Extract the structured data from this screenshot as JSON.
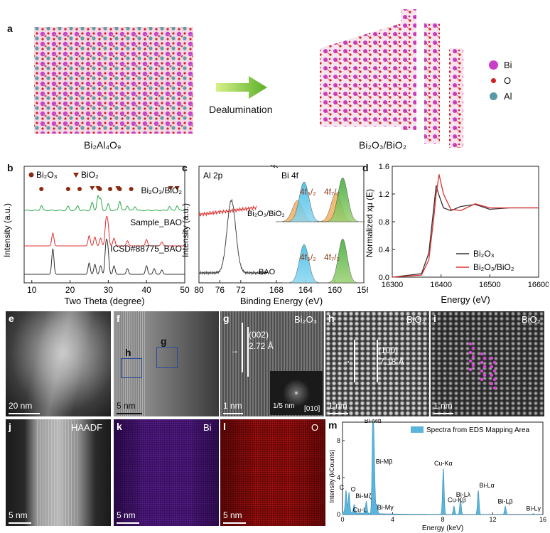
{
  "panel_letters": {
    "a": "a",
    "b": "b",
    "c": "c",
    "d": "d",
    "e": "e",
    "f": "f",
    "g": "g",
    "h": "h",
    "i": "i",
    "j": "j",
    "k": "k",
    "l": "l",
    "m": "m"
  },
  "panel_a": {
    "left_label": "Bi₂Al₄O₉",
    "right_label": "Bi₂O₃/BiO₂",
    "arrow_label": "Dealumination",
    "legend": [
      {
        "label": "Bi",
        "color": "#c840c8"
      },
      {
        "label": "O",
        "color": "#d42020"
      },
      {
        "label": "Al",
        "color": "#5a9aa6"
      }
    ]
  },
  "chart_data": [
    {
      "id": "b",
      "type": "line",
      "xlabel": "Two Theta (degree)",
      "ylabel": "Intensity (a.u.)",
      "xlim": [
        8,
        50
      ],
      "x_ticks": [
        10,
        20,
        30,
        40,
        50
      ],
      "legend": [
        {
          "label": "Bi₂O₃",
          "marker": "circle",
          "color": "#8b2a10"
        },
        {
          "label": "BiO₂",
          "marker": "triangle",
          "color": "#8b2a10"
        }
      ],
      "series": [
        {
          "name": "Bi₂O₃/BiO₂",
          "color": "#2aa84a",
          "peaks": [
            [
              12.5,
              0.3
            ],
            [
              19.5,
              0.25
            ],
            [
              22,
              0.3
            ],
            [
              25.8,
              0.5
            ],
            [
              27.3,
              0.9
            ],
            [
              28,
              0.7
            ],
            [
              30,
              0.4
            ],
            [
              33,
              0.6
            ],
            [
              35,
              0.3
            ],
            [
              37,
              0.25
            ],
            [
              46,
              0.25
            ],
            [
              48,
              0.3
            ]
          ]
        },
        {
          "name": "Sample_BAO",
          "color": "#e03030",
          "peaks": [
            [
              15.5,
              0.5
            ],
            [
              25,
              0.4
            ],
            [
              26.5,
              0.35
            ],
            [
              28,
              0.3
            ],
            [
              29.4,
              0.9
            ],
            [
              29.9,
              0.8
            ],
            [
              31.5,
              0.3
            ],
            [
              35,
              0.2
            ],
            [
              40,
              0.25
            ],
            [
              44,
              0.15
            ]
          ]
        },
        {
          "name": "ICSD#88775_BAO",
          "color": "#333333",
          "peaks": [
            [
              15.5,
              0.9
            ],
            [
              25,
              0.4
            ],
            [
              26.5,
              0.35
            ],
            [
              28,
              0.3
            ],
            [
              29.4,
              1.0
            ],
            [
              29.9,
              0.8
            ],
            [
              31.5,
              0.3
            ],
            [
              35,
              0.2
            ],
            [
              40,
              0.3
            ],
            [
              42,
              0.2
            ],
            [
              44,
              0.15
            ]
          ]
        }
      ],
      "markers": {
        "circles_x": [
          12.5,
          19.5,
          22.5,
          27.8,
          30.5,
          33,
          36
        ],
        "triangles_x": [
          25.8,
          27.3,
          32.5,
          46.3,
          48
        ]
      }
    },
    {
      "id": "c",
      "type": "line",
      "xlabel": "Binding Energy (eV)",
      "ylabel": "Intensity (a.u.)",
      "region_left": {
        "title": "Al 2p",
        "xlim": [
          80,
          66
        ],
        "x_ticks": [
          80,
          76,
          72
        ]
      },
      "region_right": {
        "title": "Bi 4f",
        "xlim": [
          168,
          156
        ],
        "x_ticks": [
          168,
          164,
          160,
          156
        ]
      },
      "series": [
        {
          "name": "Bi₂O₃/BiO₂",
          "color": "#e03030"
        },
        {
          "name": "BAO",
          "color": "#444444",
          "peak_x": 73.8
        }
      ],
      "bi4f_peaks": [
        {
          "label": "4f₅/₂",
          "x": 164.2
        },
        {
          "label": "4f₇/₂",
          "x": 158.9
        }
      ]
    },
    {
      "id": "d",
      "type": "line",
      "xlabel": "Energy (eV)",
      "ylabel": "Normalized xμ (E)",
      "xlim": [
        16300,
        16600
      ],
      "ylim": [
        0.0,
        1.6
      ],
      "x_ticks": [
        16300,
        16400,
        16500,
        16600
      ],
      "y_ticks": [
        0.0,
        0.4,
        0.8,
        1.2,
        1.6
      ],
      "series": [
        {
          "name": "Bi₂O₃",
          "color": "#333333",
          "x": [
            16300,
            16360,
            16375,
            16385,
            16390,
            16395,
            16405,
            16420,
            16440,
            16470,
            16500,
            16540,
            16600
          ],
          "y": [
            0.0,
            0.05,
            0.35,
            1.0,
            1.32,
            1.2,
            1.0,
            0.96,
            1.02,
            1.05,
            0.98,
            1.0,
            1.0
          ]
        },
        {
          "name": "Bi₂O₃/BiO₂",
          "color": "#e03030",
          "x": [
            16300,
            16360,
            16375,
            16385,
            16390,
            16396,
            16405,
            16420,
            16440,
            16470,
            16500,
            16540,
            16600
          ],
          "y": [
            0.0,
            0.03,
            0.25,
            0.85,
            1.2,
            1.48,
            1.2,
            0.98,
            0.96,
            1.06,
            1.0,
            1.0,
            1.0
          ]
        }
      ]
    },
    {
      "id": "m",
      "type": "bar",
      "xlabel": "Energy (keV)",
      "ylabel": "Intensity (kCounts)",
      "xlim": [
        0,
        16
      ],
      "ylim": [
        0,
        10
      ],
      "x_ticks": [
        0,
        4,
        8,
        12,
        16
      ],
      "y_ticks": [
        0,
        4,
        8
      ],
      "legend": "Spectra from EDS Mapping Area",
      "peaks": [
        {
          "label": "C",
          "x": 0.28,
          "y": 2.4
        },
        {
          "label": "O",
          "x": 0.52,
          "y": 2.2
        },
        {
          "label": "Cu-L",
          "x": 0.93,
          "y": 0.9
        },
        {
          "label": "Bi-Mζ",
          "x": 1.9,
          "y": 1.3
        },
        {
          "label": "Bi-Mα",
          "x": 2.42,
          "y": 9.6
        },
        {
          "label": "Bi-Mβ",
          "x": 2.53,
          "y": 5.5
        },
        {
          "label": "Bi-Mγ",
          "x": 2.74,
          "y": 1.0
        },
        {
          "label": "Cu-Kα",
          "x": 8.05,
          "y": 5.0
        },
        {
          "label": "Cu-Kβ",
          "x": 8.9,
          "y": 0.9
        },
        {
          "label": "Bi-Lλ",
          "x": 9.42,
          "y": 1.6
        },
        {
          "label": "Bi-Lα",
          "x": 10.84,
          "y": 2.6
        },
        {
          "label": "Bi-Lβ",
          "x": 13.0,
          "y": 0.9
        },
        {
          "label": "Bi-Lγ",
          "x": 15.25,
          "y": 0.1
        }
      ]
    }
  ],
  "micro": {
    "e": {
      "scale": "20 nm"
    },
    "f": {
      "scale": "5 nm",
      "box_h": "h",
      "box_g": "g"
    },
    "g": {
      "title": "Bi₂O₃",
      "plane": "(002)",
      "spacing": "2.72 Å",
      "fft_scale": "1/5 nm",
      "zone": "[010]",
      "scale": "1 nm"
    },
    "h": {
      "title": "BiO₂",
      "plane": "(100)",
      "spacing": "7.18 Å",
      "scale": "1 nm"
    },
    "i": {
      "title": "BiO₂",
      "scale": "1 nm"
    },
    "j": {
      "title": "HAADF",
      "scale": "5 nm"
    },
    "k": {
      "title": "Bi",
      "scale": "5 nm"
    },
    "l": {
      "title": "O",
      "scale": "5 nm"
    }
  }
}
